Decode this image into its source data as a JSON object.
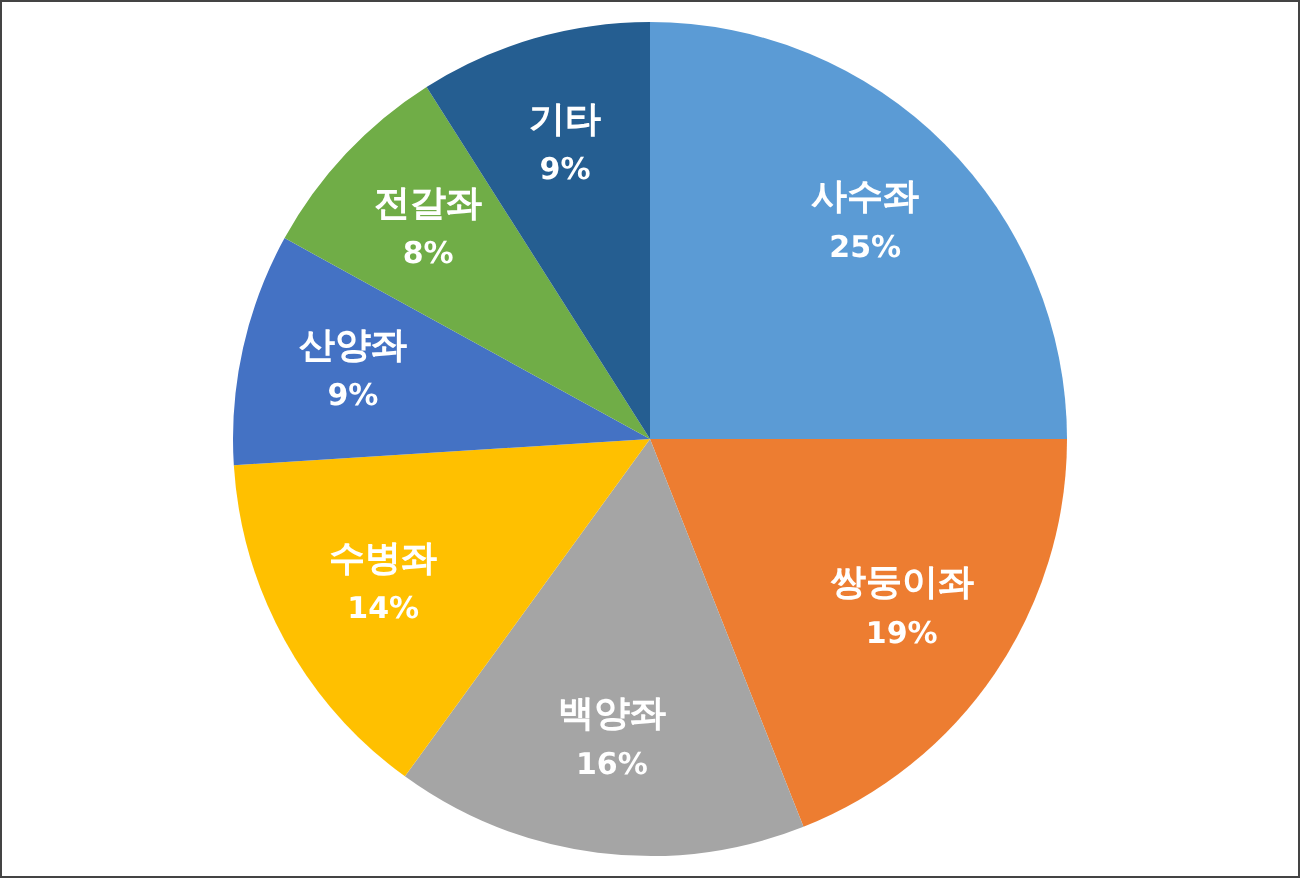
{
  "chart_data": {
    "type": "pie",
    "categories": [
      "사수좌",
      "쌍둥이좌",
      "백양좌",
      "수병좌",
      "산양좌",
      "전갈좌",
      "기타"
    ],
    "values": [
      25,
      19,
      16,
      14,
      9,
      8,
      9
    ],
    "colors": [
      "#5b9bd5",
      "#ed7d31",
      "#a5a5a5",
      "#ffc000",
      "#4472c4",
      "#70ad47",
      "#255e91"
    ],
    "value_labels": [
      "25%",
      "19%",
      "16%",
      "14%",
      "9%",
      "8%",
      "9%"
    ],
    "legend": false
  }
}
